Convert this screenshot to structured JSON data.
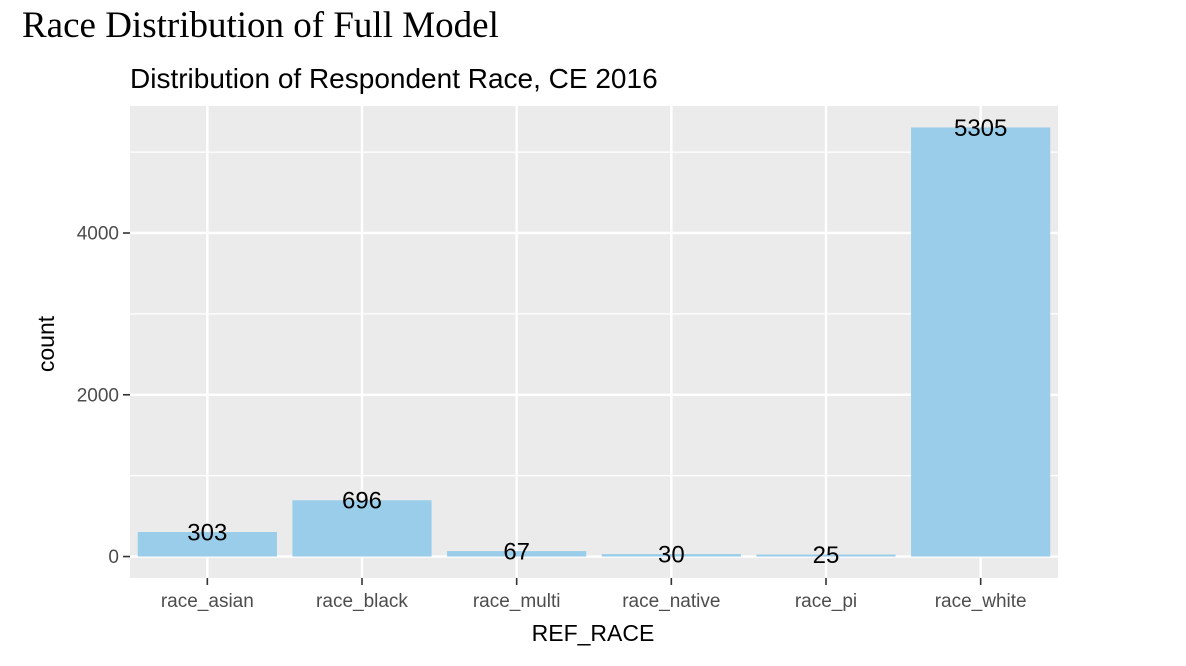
{
  "page_heading": "Race Distribution of Full Model",
  "chart_data": {
    "type": "bar",
    "title": "Distribution of Respondent Race, CE 2016",
    "xlabel": "REF_RACE",
    "ylabel": "count",
    "categories": [
      "race_asian",
      "race_black",
      "race_multi",
      "race_native",
      "race_pi",
      "race_white"
    ],
    "values": [
      303,
      696,
      67,
      30,
      25,
      5305
    ],
    "data_labels": [
      "303",
      "696",
      "67",
      "30",
      "25",
      "5305"
    ],
    "yticks": [
      0,
      2000,
      4000
    ],
    "ytick_labels": [
      "0",
      "2000",
      "4000"
    ],
    "ylim": [
      -265.25,
      5570.25
    ],
    "grid": true,
    "bar_color": "#99cde9",
    "panel_background": "#ebebeb",
    "grid_color": "#ffffff"
  }
}
